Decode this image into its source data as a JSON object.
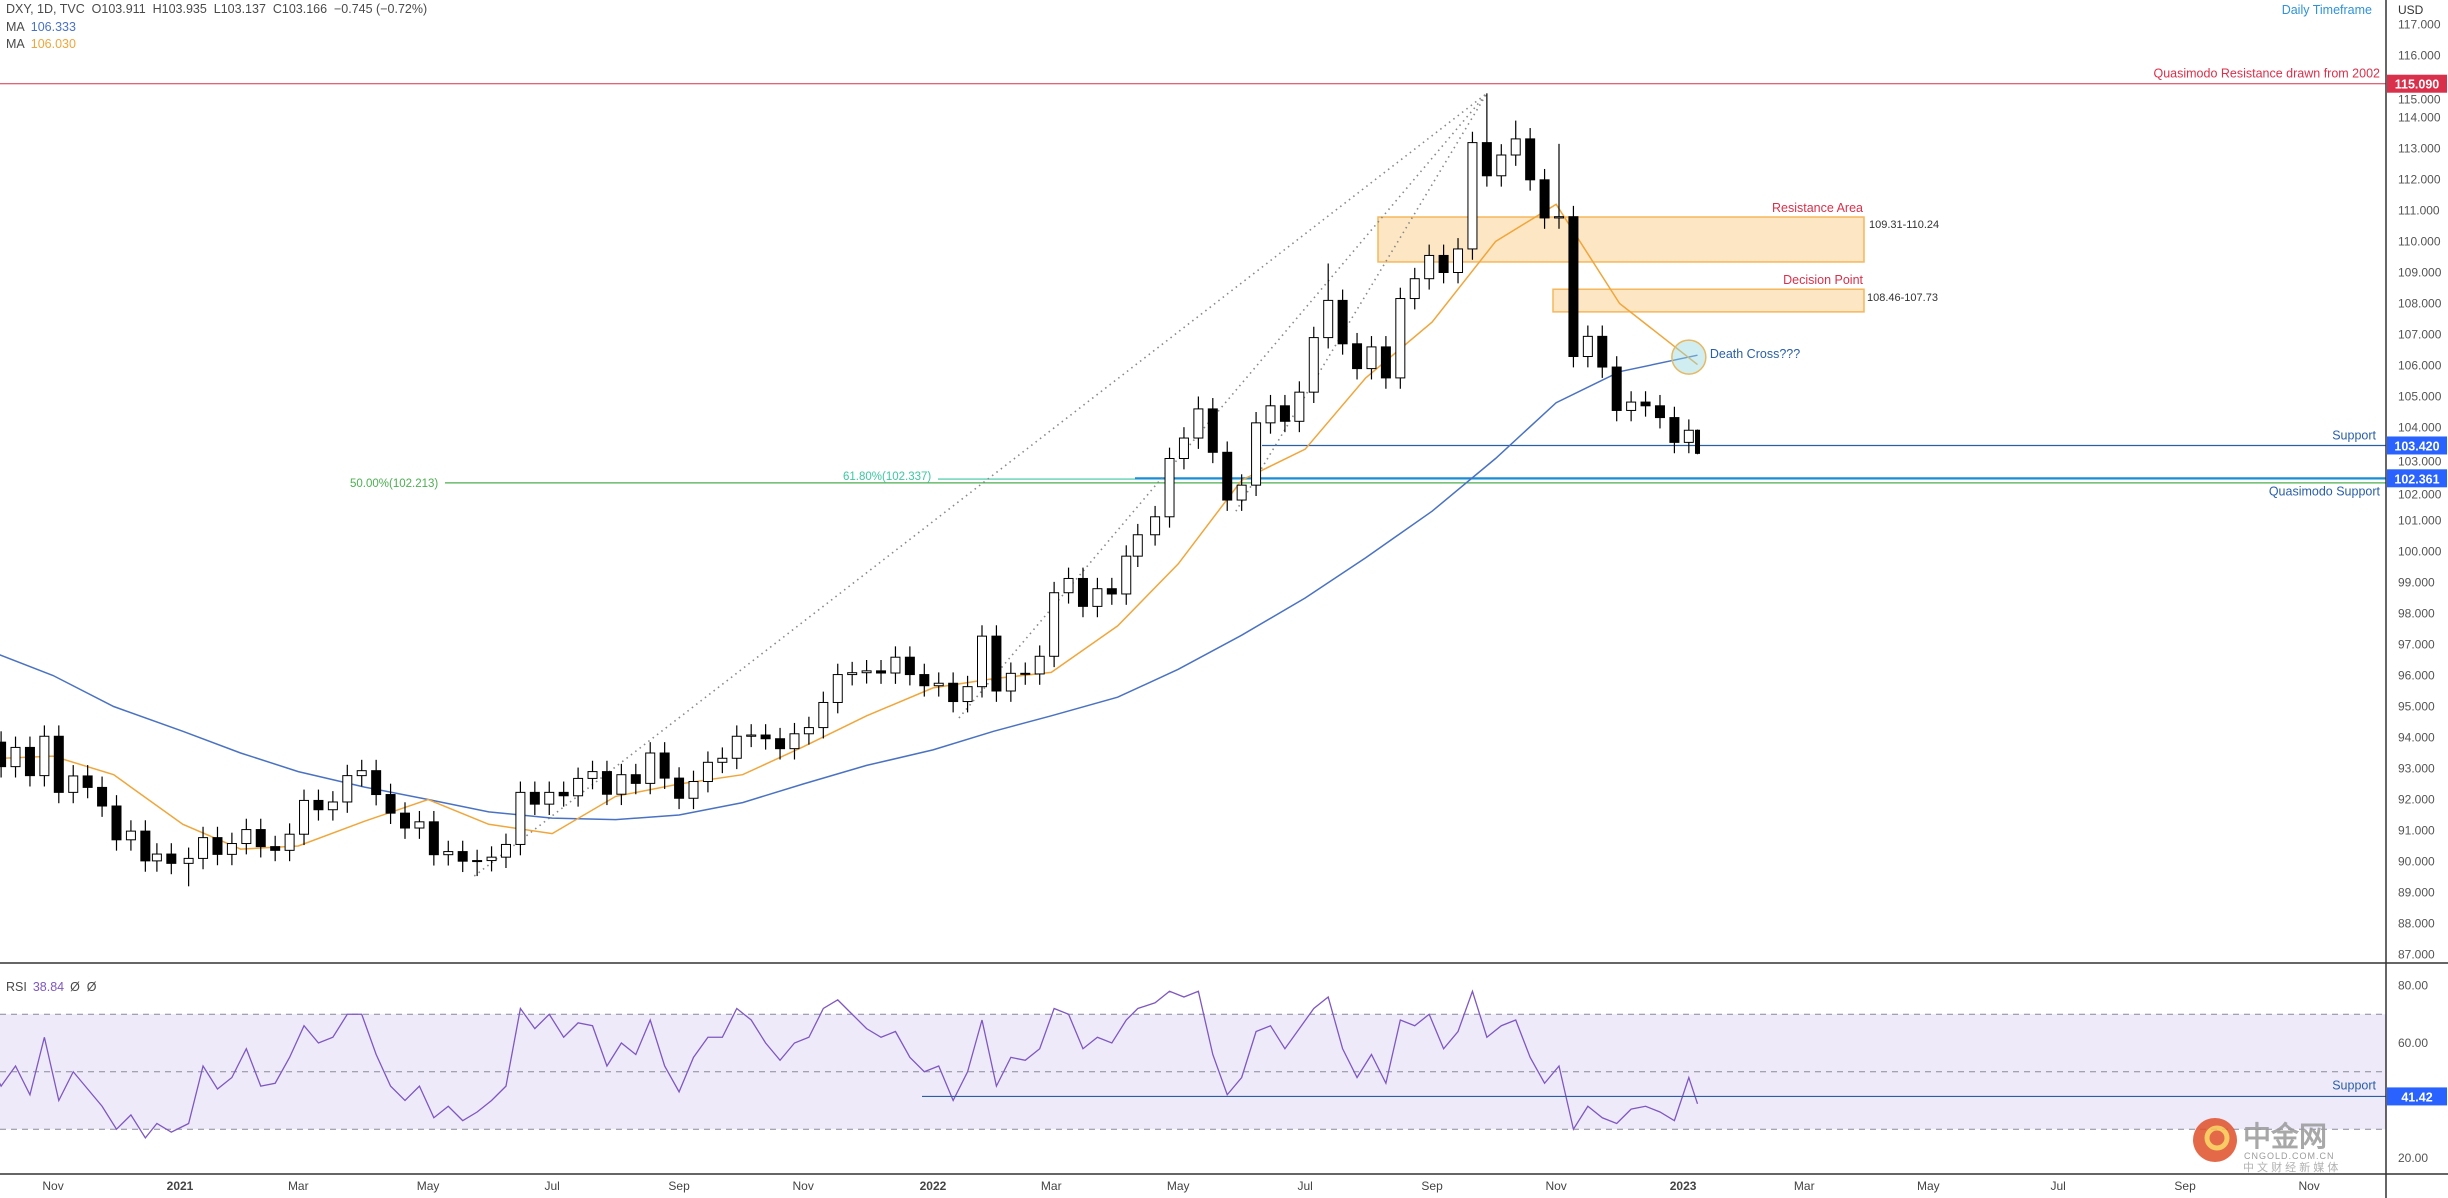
{
  "legend": {
    "symbol_line": "DXY, 1D, TVC  O103.911  H103.935  L103.137  C103.166  −0.745 (−0.72%)",
    "ma1_label": "MA",
    "ma1_value": "106.333",
    "ma1_color": "#4a72c4",
    "ma2_label": "MA",
    "ma2_value": "106.030",
    "ma2_color": "#f0a63a",
    "rsi_label": "RSI",
    "rsi_value": "38.84",
    "rsi_extra": "Ø  Ø"
  },
  "top_right_note": "Daily Timeframe",
  "currency": "USD",
  "price_axis_ticks": [
    "117.000",
    "116.000",
    "115.000",
    "114.000",
    "113.000",
    "112.000",
    "111.000",
    "110.000",
    "109.000",
    "108.000",
    "107.000",
    "106.000",
    "105.000",
    "104.000",
    "103.000",
    "102.000",
    "101.000",
    "100.000",
    "99.000",
    "98.000",
    "97.000",
    "96.000",
    "95.000",
    "94.000",
    "93.000",
    "92.000",
    "91.000",
    "90.000",
    "89.000",
    "88.000",
    "87.000"
  ],
  "rsi_axis_ticks": [
    "80.00",
    "60.00",
    "20.00"
  ],
  "time_axis": [
    {
      "label": "Nov",
      "date": "2020-11-02"
    },
    {
      "label": "2021",
      "date": "2021-01-01"
    },
    {
      "label": "Mar",
      "date": "2021-03-01"
    },
    {
      "label": "May",
      "date": "2021-05-03"
    },
    {
      "label": "Jul",
      "date": "2021-07-01"
    },
    {
      "label": "Sep",
      "date": "2021-09-01"
    },
    {
      "label": "Nov",
      "date": "2021-11-01"
    },
    {
      "label": "2022",
      "date": "2022-01-03"
    },
    {
      "label": "Mar",
      "date": "2022-03-01"
    },
    {
      "label": "May",
      "date": "2022-05-02"
    },
    {
      "label": "Jul",
      "date": "2022-07-01"
    },
    {
      "label": "Sep",
      "date": "2022-09-01"
    },
    {
      "label": "Nov",
      "date": "2022-11-01"
    },
    {
      "label": "2023",
      "date": "2023-01-02"
    },
    {
      "label": "Mar",
      "date": "2023-03-01"
    },
    {
      "label": "May",
      "date": "2023-05-01"
    },
    {
      "label": "Jul",
      "date": "2023-07-03"
    },
    {
      "label": "Sep",
      "date": "2023-09-01"
    },
    {
      "label": "Nov",
      "date": "2023-11-01"
    }
  ],
  "annotations": {
    "qm_resistance": {
      "label": "Quasimodo Resistance drawn from 2002",
      "price": 115.09,
      "badge": "115.090",
      "color": "#d9304b"
    },
    "support": {
      "label": "Support",
      "price": 103.42,
      "badge": "103.420",
      "color": "#2a5fa8"
    },
    "qm_support": {
      "label": "Quasimodo Support",
      "price": 102.361,
      "badge": "102.361",
      "color": "#1e88e5"
    },
    "fib_50": {
      "label": "50.00%(102.213)",
      "price": 102.213,
      "color": "#4caf50"
    },
    "fib_618": {
      "label": "61.80%(102.337)",
      "price": 102.337,
      "color": "#3cc8a0"
    },
    "resistance_area": {
      "title": "Resistance Area",
      "range": "109.31-110.24",
      "top": 110.79,
      "bottom": 109.34
    },
    "decision_point": {
      "title": "Decision Point",
      "range": "108.46-107.73",
      "top": 108.46,
      "bottom": 107.73
    },
    "death_cross": {
      "label": "Death Cross???",
      "date": "2023-01-04",
      "price": 106.27
    },
    "rsi_support": {
      "label": "Support",
      "value": 41.42,
      "badge": "41.42"
    },
    "badge_color": "#2962ff",
    "zone_fill": "#fde6c4",
    "zone_border": "#f5b75c"
  },
  "watermark": {
    "name": "中金网",
    "domain": "CNGOLD.COM.CN",
    "tagline": "中 文 财 经 新 媒 体"
  },
  "chart_data": [
    {
      "type": "candlestick",
      "title": "DXY, 1D, TVC",
      "ylim": [
        86.5,
        117.3
      ],
      "ylabel": "USD",
      "grid": false,
      "dates": [
        "2020-10-02",
        "2020-10-09",
        "2020-10-16",
        "2020-10-23",
        "2020-10-30",
        "2020-11-06",
        "2020-11-13",
        "2020-11-20",
        "2020-11-27",
        "2020-12-04",
        "2020-12-11",
        "2020-12-18",
        "2020-12-24",
        "2020-12-31",
        "2021-01-08",
        "2021-01-15",
        "2021-01-22",
        "2021-01-29",
        "2021-02-05",
        "2021-02-12",
        "2021-02-19",
        "2021-02-26",
        "2021-03-05",
        "2021-03-12",
        "2021-03-19",
        "2021-03-26",
        "2021-04-02",
        "2021-04-09",
        "2021-04-16",
        "2021-04-23",
        "2021-04-30",
        "2021-05-07",
        "2021-05-14",
        "2021-05-21",
        "2021-05-28",
        "2021-06-04",
        "2021-06-11",
        "2021-06-18",
        "2021-06-25",
        "2021-07-02",
        "2021-07-09",
        "2021-07-16",
        "2021-07-23",
        "2021-07-30",
        "2021-08-06",
        "2021-08-13",
        "2021-08-20",
        "2021-08-27",
        "2021-09-03",
        "2021-09-10",
        "2021-09-17",
        "2021-09-24",
        "2021-10-01",
        "2021-10-08",
        "2021-10-15",
        "2021-10-22",
        "2021-10-29",
        "2021-11-05",
        "2021-11-12",
        "2021-11-19",
        "2021-11-26",
        "2021-12-03",
        "2021-12-10",
        "2021-12-17",
        "2021-12-24",
        "2021-12-31",
        "2022-01-07",
        "2022-01-14",
        "2022-01-21",
        "2022-01-28",
        "2022-02-04",
        "2022-02-11",
        "2022-02-18",
        "2022-02-25",
        "2022-03-04",
        "2022-03-11",
        "2022-03-18",
        "2022-03-25",
        "2022-04-01",
        "2022-04-08",
        "2022-04-14",
        "2022-04-22",
        "2022-04-29",
        "2022-05-06",
        "2022-05-13",
        "2022-05-20",
        "2022-05-27",
        "2022-06-03",
        "2022-06-10",
        "2022-06-17",
        "2022-06-24",
        "2022-07-01",
        "2022-07-08",
        "2022-07-15",
        "2022-07-22",
        "2022-07-29",
        "2022-08-05",
        "2022-08-12",
        "2022-08-19",
        "2022-08-26",
        "2022-09-02",
        "2022-09-09",
        "2022-09-16",
        "2022-09-23",
        "2022-09-30",
        "2022-10-07",
        "2022-10-14",
        "2022-10-21",
        "2022-10-28",
        "2022-11-04",
        "2022-11-11",
        "2022-11-18",
        "2022-11-25",
        "2022-12-02",
        "2022-12-09",
        "2022-12-16",
        "2022-12-23",
        "2022-12-30",
        "2023-01-06",
        "2023-01-09"
      ],
      "close": [
        93.85,
        93.06,
        93.68,
        92.77,
        94.04,
        92.23,
        92.76,
        92.39,
        91.79,
        90.7,
        90.98,
        90.02,
        90.24,
        89.94,
        90.1,
        90.77,
        90.23,
        90.58,
        91.03,
        90.48,
        90.36,
        90.88,
        91.97,
        91.67,
        91.92,
        92.77,
        92.93,
        92.16,
        91.56,
        91.08,
        91.28,
        90.22,
        90.32,
        90.01,
        90.03,
        90.14,
        90.55,
        92.23,
        91.85,
        92.23,
        92.12,
        92.68,
        92.9,
        92.17,
        92.8,
        92.52,
        93.5,
        92.69,
        92.04,
        92.58,
        93.2,
        93.33,
        94.04,
        94.08,
        93.96,
        93.64,
        94.12,
        94.32,
        95.13,
        96.03,
        96.09,
        96.15,
        96.08,
        96.59,
        96.03,
        95.67,
        95.75,
        95.16,
        95.64,
        97.27,
        95.5,
        96.07,
        96.05,
        96.62,
        98.67,
        99.13,
        98.23,
        98.8,
        98.63,
        99.85,
        100.54,
        101.12,
        103.0,
        103.66,
        104.6,
        103.2,
        101.66,
        102.14,
        104.15,
        104.7,
        104.2,
        105.14,
        106.9,
        108.1,
        106.7,
        105.9,
        106.6,
        105.6,
        108.16,
        108.8,
        109.55,
        109.0,
        109.76,
        113.19,
        112.12,
        112.79,
        113.31,
        111.99,
        110.76,
        110.8,
        106.29,
        106.94,
        105.95,
        104.55,
        104.82,
        104.7,
        104.32,
        103.52,
        103.911,
        103.166
      ],
      "notable_extremes": [
        {
          "date": "2021-01-08",
          "low": 89.2
        },
        {
          "date": "2021-05-28",
          "low": 89.53
        },
        {
          "date": "2022-05-13",
          "high": 105.0
        },
        {
          "date": "2022-07-15",
          "high": 109.29
        },
        {
          "date": "2022-09-30",
          "high": 114.78
        },
        {
          "date": "2022-10-14",
          "high": 113.9
        },
        {
          "date": "2022-11-04",
          "high": 113.15
        },
        {
          "date": "2023-01-09",
          "high": 103.935,
          "low": 103.137
        }
      ],
      "moving_averages": [
        {
          "name": "MA",
          "last": 106.333,
          "color": "#4a72c4",
          "points": [
            [
              "2020-09-28",
              96.9
            ],
            [
              "2020-11-02",
              96.0
            ],
            [
              "2020-12-01",
              95.0
            ],
            [
              "2021-01-04",
              94.2
            ],
            [
              "2021-02-01",
              93.5
            ],
            [
              "2021-03-01",
              92.9
            ],
            [
              "2021-04-01",
              92.4
            ],
            [
              "2021-05-03",
              92.0
            ],
            [
              "2021-06-01",
              91.6
            ],
            [
              "2021-07-01",
              91.4
            ],
            [
              "2021-08-02",
              91.35
            ],
            [
              "2021-09-01",
              91.5
            ],
            [
              "2021-10-01",
              91.9
            ],
            [
              "2021-11-01",
              92.5
            ],
            [
              "2021-12-01",
              93.1
            ],
            [
              "2022-01-03",
              93.6
            ],
            [
              "2022-02-01",
              94.2
            ],
            [
              "2022-03-01",
              94.7
            ],
            [
              "2022-04-01",
              95.3
            ],
            [
              "2022-05-02",
              96.2
            ],
            [
              "2022-06-01",
              97.3
            ],
            [
              "2022-07-01",
              98.5
            ],
            [
              "2022-08-01",
              99.8
            ],
            [
              "2022-09-01",
              101.3
            ],
            [
              "2022-10-03",
              103.0
            ],
            [
              "2022-11-01",
              104.8
            ],
            [
              "2022-12-01",
              105.8
            ],
            [
              "2023-01-09",
              106.333
            ]
          ]
        },
        {
          "name": "MA",
          "last": 106.03,
          "color": "#f0a63a",
          "points": [
            [
              "2020-09-28",
              93.3
            ],
            [
              "2020-11-02",
              93.4
            ],
            [
              "2020-12-01",
              92.8
            ],
            [
              "2021-01-04",
              91.2
            ],
            [
              "2021-02-01",
              90.4
            ],
            [
              "2021-03-01",
              90.5
            ],
            [
              "2021-04-01",
              91.3
            ],
            [
              "2021-05-03",
              92.0
            ],
            [
              "2021-06-01",
              91.2
            ],
            [
              "2021-07-01",
              90.9
            ],
            [
              "2021-08-02",
              92.1
            ],
            [
              "2021-09-01",
              92.5
            ],
            [
              "2021-10-01",
              92.8
            ],
            [
              "2021-11-01",
              93.7
            ],
            [
              "2021-12-01",
              94.7
            ],
            [
              "2022-01-03",
              95.6
            ],
            [
              "2022-02-01",
              95.9
            ],
            [
              "2022-03-01",
              96.1
            ],
            [
              "2022-04-01",
              97.6
            ],
            [
              "2022-05-02",
              99.6
            ],
            [
              "2022-06-01",
              102.3
            ],
            [
              "2022-07-01",
              103.3
            ],
            [
              "2022-08-01",
              105.6
            ],
            [
              "2022-09-01",
              107.4
            ],
            [
              "2022-10-03",
              110.0
            ],
            [
              "2022-11-01",
              111.2
            ],
            [
              "2022-12-01",
              108.0
            ],
            [
              "2023-01-09",
              106.03
            ]
          ]
        }
      ],
      "trend_lines": [
        [
          [
            "2021-05-25",
            89.53
          ],
          [
            "2022-09-28",
            114.78
          ]
        ],
        [
          [
            "2022-01-14",
            94.63
          ],
          [
            "2022-09-28",
            114.78
          ]
        ],
        [
          [
            "2022-05-30",
            101.3
          ],
          [
            "2022-09-28",
            114.78
          ]
        ]
      ]
    },
    {
      "type": "line",
      "title": "RSI",
      "ylim": [
        15,
        85
      ],
      "bands": {
        "upper": 70,
        "middle": 50,
        "lower": 30
      },
      "band_fill": "#efeafa",
      "color": "#7e57c2",
      "values": [
        55,
        45,
        52,
        42,
        62,
        40,
        50,
        44,
        38,
        30,
        35,
        27,
        32,
        29,
        32,
        52,
        44,
        48,
        58,
        45,
        46,
        55,
        66,
        60,
        62,
        70,
        70,
        56,
        45,
        40,
        45,
        34,
        38,
        33,
        36,
        40,
        45,
        72,
        65,
        70,
        62,
        67,
        66,
        52,
        60,
        56,
        68,
        52,
        43,
        55,
        62,
        62,
        72,
        68,
        60,
        54,
        60,
        62,
        72,
        75,
        70,
        65,
        62,
        64,
        55,
        50,
        52,
        40,
        50,
        68,
        45,
        55,
        54,
        58,
        72,
        70,
        58,
        62,
        60,
        68,
        72,
        74,
        78,
        76,
        78,
        56,
        42,
        48,
        64,
        66,
        58,
        65,
        72,
        76,
        58,
        48,
        56,
        46,
        68,
        66,
        70,
        58,
        64,
        78,
        62,
        66,
        68,
        55,
        46,
        52,
        30,
        38,
        34,
        32,
        37,
        38,
        36,
        33,
        48,
        38.84
      ]
    }
  ]
}
